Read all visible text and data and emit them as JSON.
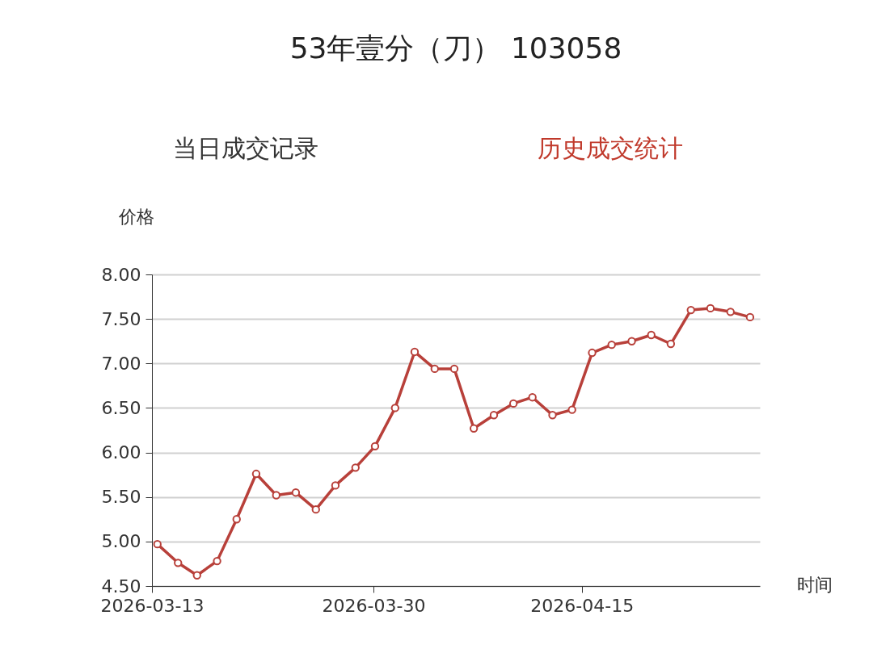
{
  "chart_data": {
    "type": "line",
    "title": "53年壹分（刀） 103058",
    "annotations": [
      "当日成交记录",
      "历史成交统计"
    ],
    "xlabel": "时间",
    "ylabel": "价格",
    "x": [
      "2026-03-13T10:00",
      "2026-03-15T00:00",
      "2026-03-16T11:00",
      "2026-03-18T00:00",
      "2026-03-19T12:00",
      "2026-03-21T00:00",
      "2026-03-22T13:00",
      "2026-03-24T01:00",
      "2026-03-25T14:00",
      "2026-03-27T02:00",
      "2026-03-28T15:00",
      "2026-03-30T03:00",
      "2026-03-31T16:00",
      "2026-04-02T04:00",
      "2026-04-03T17:00",
      "2026-04-05T05:00",
      "2026-04-06T17:00",
      "2026-04-08T06:00",
      "2026-04-09T18:00",
      "2026-04-11T05:00",
      "2026-04-12T18:00",
      "2026-04-14T06:00",
      "2026-04-15T19:00",
      "2026-04-17T07:00",
      "2026-04-18T20:00",
      "2026-04-20T08:00",
      "2026-04-21T20:00",
      "2026-04-23T09:00",
      "2026-04-24T21:00",
      "2026-04-26T10:00",
      "2026-04-27T22:00"
    ],
    "series": [
      {
        "color": "#b8403a",
        "values": [
          4.97,
          4.76,
          4.62,
          4.78,
          5.25,
          5.76,
          5.52,
          5.55,
          5.36,
          5.63,
          5.83,
          6.07,
          6.5,
          7.13,
          6.94,
          6.94,
          6.27,
          6.42,
          6.55,
          6.62,
          6.42,
          6.48,
          7.12,
          7.21,
          7.25,
          7.32,
          7.22,
          7.6,
          7.62,
          7.58,
          7.52
        ]
      }
    ],
    "xlim": [
      "2026-03-13",
      "2026-04-28T16:00"
    ],
    "xticks": [
      "2026-03-13",
      "2026-03-30",
      "2026-04-15"
    ],
    "ylim": [
      4.5,
      8.0
    ],
    "yticks": [
      {
        "value": 4.5,
        "label": "4.50"
      },
      {
        "value": 5.0,
        "label": "5.00"
      },
      {
        "value": 5.5,
        "label": "5.50"
      },
      {
        "value": 6.0,
        "label": "6.00"
      },
      {
        "value": 6.5,
        "label": "6.50"
      },
      {
        "value": 7.0,
        "label": "7.00"
      },
      {
        "value": 7.5,
        "label": "7.50"
      },
      {
        "value": 8.0,
        "label": "8.00"
      }
    ],
    "grid": "y",
    "marker": "circle",
    "line_style": "solid"
  }
}
